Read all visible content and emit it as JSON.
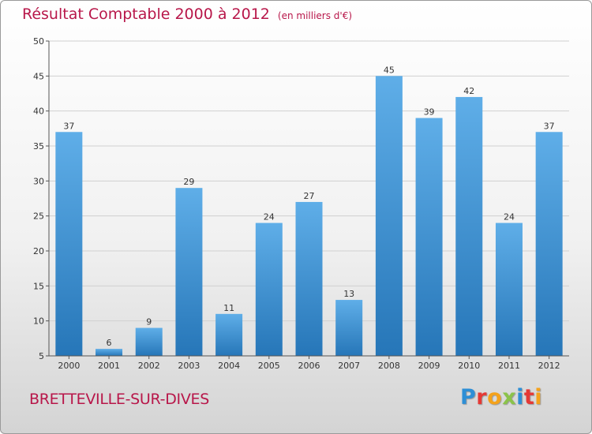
{
  "title": "Résultat Comptable 2000 à 2012",
  "unit_label": "(en milliers d'€)",
  "commune": "BRETTEVILLE-SUR-DIVES",
  "logo": {
    "text": "Proxiti",
    "letters": [
      {
        "ch": "P",
        "color": "#2e8fd6"
      },
      {
        "ch": "r",
        "color": "#e53935"
      },
      {
        "ch": "o",
        "color": "#f4a21b"
      },
      {
        "ch": "x",
        "color": "#8bc34a"
      },
      {
        "ch": "i",
        "color": "#2e8fd6"
      },
      {
        "ch": "t",
        "color": "#e53935"
      },
      {
        "ch": "i",
        "color": "#f4a21b"
      }
    ]
  },
  "colors": {
    "title": "#b8174a",
    "bar_top": "#5faee8",
    "bar_bottom": "#2676b8",
    "grid": "#d0d0d0",
    "axis": "#555555",
    "text": "#333333"
  },
  "chart_data": {
    "type": "bar",
    "title": "Résultat Comptable 2000 à 2012",
    "xlabel": "",
    "ylabel": "",
    "categories": [
      "2000",
      "2001",
      "2002",
      "2003",
      "2004",
      "2005",
      "2006",
      "2007",
      "2008",
      "2009",
      "2010",
      "2011",
      "2012"
    ],
    "values": [
      37,
      6,
      9,
      29,
      11,
      24,
      27,
      13,
      45,
      39,
      42,
      24,
      37
    ],
    "ylim": [
      5,
      50
    ],
    "yticks": [
      5,
      10,
      15,
      20,
      25,
      30,
      35,
      40,
      45,
      50
    ],
    "grid": true,
    "legend": "none"
  }
}
